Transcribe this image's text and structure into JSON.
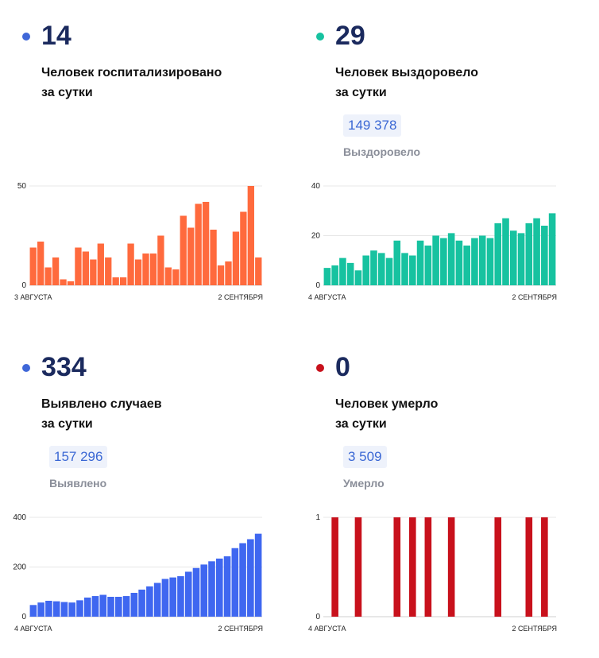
{
  "panels": [
    {
      "value": "14",
      "label_lines": [
        "Человек госпитализировано",
        "за сутки"
      ],
      "dot_color": "#3f67d8",
      "total": "",
      "total_caption": ""
    },
    {
      "value": "29",
      "label_lines": [
        "Человек выздоровело",
        "за сутки"
      ],
      "dot_color": "#17c2a0",
      "total": "149 378",
      "total_caption": "Выздоровело"
    },
    {
      "value": "334",
      "label_lines": [
        "Выявлено случаев",
        "за сутки"
      ],
      "dot_color": "#3f67d8",
      "total": "157 296",
      "total_caption": "Выявлено"
    },
    {
      "value": "0",
      "label_lines": [
        "Человек умерло",
        "за сутки"
      ],
      "dot_color": "#c8111c",
      "total": "3 509",
      "total_caption": "Умерло"
    }
  ],
  "chart_data": [
    {
      "type": "bar",
      "color": "#ff6a3d",
      "x_start_label": "3 АВГУСТА",
      "x_end_label": "2 СЕНТЯБРЯ",
      "y_ticks": [
        0,
        50
      ],
      "ylim": [
        0,
        50
      ],
      "values": [
        19,
        22,
        9,
        14,
        3,
        2,
        19,
        17,
        13,
        21,
        14,
        4,
        4,
        21,
        13,
        16,
        16,
        25,
        9,
        8,
        35,
        29,
        41,
        42,
        28,
        10,
        12,
        27,
        37,
        50,
        14
      ]
    },
    {
      "type": "bar",
      "color": "#17c2a0",
      "x_start_label": "4 АВГУСТА",
      "x_end_label": "2 СЕНТЯБРЯ",
      "y_ticks": [
        0,
        20,
        40
      ],
      "ylim": [
        0,
        40
      ],
      "values": [
        7,
        8,
        11,
        9,
        6,
        12,
        14,
        13,
        11,
        18,
        13,
        12,
        18,
        16,
        20,
        19,
        21,
        18,
        16,
        19,
        20,
        19,
        25,
        27,
        22,
        21,
        25,
        27,
        24,
        29
      ]
    },
    {
      "type": "bar",
      "color": "#3f67f0",
      "x_start_label": "4 АВГУСТА",
      "x_end_label": "2 СЕНТЯБРЯ",
      "y_ticks": [
        0,
        200,
        400
      ],
      "ylim": [
        0,
        400
      ],
      "values": [
        47,
        57,
        64,
        62,
        59,
        57,
        66,
        77,
        83,
        88,
        80,
        80,
        83,
        96,
        109,
        122,
        136,
        152,
        158,
        163,
        181,
        196,
        210,
        223,
        234,
        243,
        276,
        296,
        312,
        334
      ]
    },
    {
      "type": "bar",
      "color": "#c8111c",
      "x_start_label": "4 АВГУСТА",
      "x_end_label": "2 СЕНТЯБРЯ",
      "y_ticks": [
        0,
        1
      ],
      "ylim": [
        0,
        1
      ],
      "values": [
        0,
        1,
        0,
        0,
        1,
        0,
        0,
        0,
        0,
        1,
        0,
        1,
        0,
        1,
        0,
        0,
        1,
        0,
        0,
        0,
        0,
        0,
        1,
        0,
        0,
        0,
        1,
        0,
        1,
        0
      ]
    }
  ]
}
